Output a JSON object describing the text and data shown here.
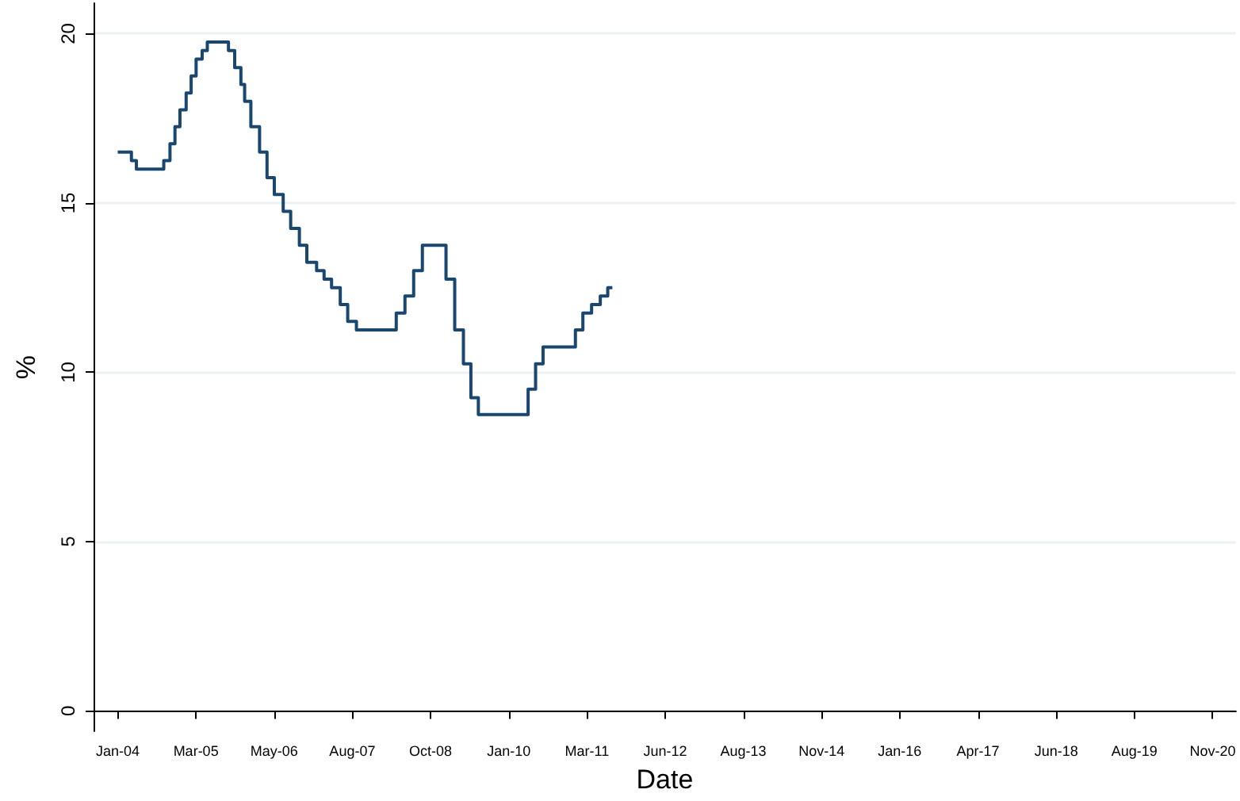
{
  "chart_data": {
    "type": "step",
    "xlabel": "Date",
    "ylabel": "%",
    "x": [
      "2004-01-01",
      "2004-03-18",
      "2004-04-15",
      "2004-09-16",
      "2004-10-21",
      "2004-11-18",
      "2004-12-16",
      "2005-01-20",
      "2005-02-17",
      "2005-03-17",
      "2005-04-20",
      "2005-05-19",
      "2005-09-15",
      "2005-10-20",
      "2005-11-24",
      "2005-12-15",
      "2006-01-19",
      "2006-03-09",
      "2006-04-20",
      "2006-05-31",
      "2006-07-20",
      "2006-08-31",
      "2006-10-19",
      "2006-11-30",
      "2007-01-24",
      "2007-03-07",
      "2007-04-18",
      "2007-06-06",
      "2007-07-18",
      "2007-09-05",
      "2008-04-16",
      "2008-06-04",
      "2008-07-23",
      "2008-09-10",
      "2009-01-21",
      "2009-03-11",
      "2009-04-29",
      "2009-06-10",
      "2009-07-22",
      "2010-04-28",
      "2010-06-09",
      "2010-07-21",
      "2011-01-19",
      "2011-03-02",
      "2011-04-20",
      "2011-06-08",
      "2011-07-20",
      "2011-08-15"
    ],
    "series": [
      {
        "color": "#1a476f",
        "values": [
          16.5,
          16.25,
          16,
          16.25,
          16.75,
          17.25,
          17.75,
          18.25,
          18.75,
          19.25,
          19.5,
          19.75,
          19.5,
          19,
          18.5,
          18,
          17.25,
          16.5,
          15.75,
          15.25,
          14.75,
          14.25,
          13.75,
          13.25,
          13,
          12.75,
          12.5,
          12,
          11.5,
          11.25,
          11.75,
          12.25,
          13,
          13.75,
          12.75,
          11.25,
          10.25,
          9.25,
          8.75,
          9.5,
          10.25,
          10.75,
          11.25,
          11.75,
          12,
          12.25,
          12.5,
          12.5
        ]
      }
    ],
    "xlim": [
      "2003-08-18",
      "2021-03-23"
    ],
    "xticks": [
      {
        "value": "2004-01-01",
        "label": "Jan-04"
      },
      {
        "value": "2005-03-16",
        "label": "Mar-05"
      },
      {
        "value": "2006-05-30",
        "label": "May-06"
      },
      {
        "value": "2007-08-13",
        "label": "Aug-07"
      },
      {
        "value": "2008-10-26",
        "label": "Oct-08"
      },
      {
        "value": "2010-01-09",
        "label": "Jan-10"
      },
      {
        "value": "2011-03-25",
        "label": "Mar-11"
      },
      {
        "value": "2012-06-07",
        "label": "Jun-12"
      },
      {
        "value": "2013-08-21",
        "label": "Aug-13"
      },
      {
        "value": "2014-11-04",
        "label": "Nov-14"
      },
      {
        "value": "2016-01-18",
        "label": "Jan-16"
      },
      {
        "value": "2017-04-02",
        "label": "Apr-17"
      },
      {
        "value": "2018-06-16",
        "label": "Jun-18"
      },
      {
        "value": "2019-08-30",
        "label": "Aug-19"
      },
      {
        "value": "2020-11-12",
        "label": "Nov-20"
      }
    ],
    "ylim": [
      -0.6,
      20.9
    ],
    "yticks": [
      0,
      5,
      10,
      15,
      20
    ],
    "grid": "y",
    "marker": "none",
    "line_style": "solid"
  }
}
